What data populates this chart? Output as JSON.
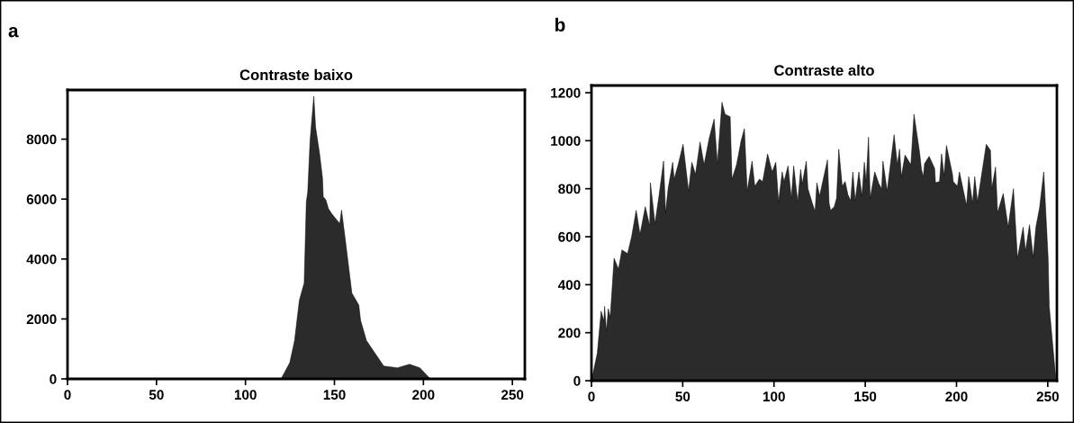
{
  "chart_data": [
    {
      "type": "area",
      "title": "Contraste baixo",
      "annotations": [
        "a"
      ],
      "color": "#2b2b2b",
      "x": [
        0,
        120,
        124.9,
        127.6,
        130.3,
        133,
        133.8,
        134.2,
        135,
        136.3,
        138.4,
        139.4,
        141.7,
        143.3,
        143.7,
        145.2,
        146.6,
        148.5,
        153,
        154,
        156.3,
        159.8,
        162.1,
        163.7,
        164.7,
        168,
        177.7,
        185.4,
        192.2,
        198,
        203.9,
        255
      ],
      "values": [
        0,
        0,
        540,
        1280,
        2630,
        3200,
        5000,
        5900,
        6250,
        7940,
        9430,
        8400,
        7490,
        6700,
        6080,
        5970,
        5680,
        5510,
        5180,
        5630,
        4550,
        2860,
        2630,
        2460,
        1950,
        1280,
        430,
        370,
        490,
        370,
        0,
        0
      ],
      "xlim": [
        0,
        257
      ],
      "ylim": [
        0,
        9640
      ],
      "xticks": [
        0,
        50,
        100,
        150,
        200,
        250
      ],
      "yticks": [
        0,
        2000,
        4000,
        6000,
        8000
      ],
      "grid": false
    },
    {
      "type": "area",
      "title": "Contraste alto",
      "annotations": [
        "b"
      ],
      "color": "#2b2b2b",
      "x": [
        0,
        3.2,
        5.3,
        6.8,
        7.2,
        8.2,
        9.2,
        10.3,
        12.4,
        14.8,
        16.7,
        19.8,
        22,
        24.5,
        26.6,
        29.5,
        31.9,
        32.3,
        34.8,
        37,
        39.5,
        40.6,
        42,
        44.5,
        45.3,
        47.5,
        50.2,
        51.5,
        53.2,
        55,
        57,
        59.5,
        61.7,
        64.5,
        67.2,
        69,
        71.5,
        73.2,
        76,
        77,
        79.5,
        82,
        83.8,
        85.3,
        88,
        89.5,
        92,
        93.8,
        96.5,
        99,
        101,
        102.5,
        104.5,
        105.5,
        107.7,
        109.5,
        110.8,
        113,
        114.6,
        115.5,
        117.7,
        118.6,
        121,
        122.5,
        123.5,
        125,
        129.3,
        130.2,
        131,
        133,
        134.3,
        135.5,
        137.4,
        139,
        140.5,
        142,
        143.2,
        144.5,
        146.5,
        148.2,
        149.5,
        150.5,
        151.8,
        152.7,
        155.2,
        157.5,
        159,
        159.7,
        162,
        165.8,
        167.6,
        168.8,
        169.8,
        171.8,
        175,
        176.7,
        179.8,
        180.8,
        181.8,
        182.5,
        185,
        188,
        188.5,
        190.7,
        191.8,
        193.2,
        194.5,
        197.8,
        198.2,
        200.5,
        201.6,
        205.5,
        206.7,
        208.8,
        210,
        211.5,
        216.3,
        218.6,
        219.3,
        221.4,
        222.5,
        225.6,
        228.3,
        231.2,
        233.4,
        236.5,
        237.8,
        240,
        242,
        243.5,
        245.5,
        247.8,
        250.2,
        250.8,
        254.5
      ],
      "values": [
        0,
        115,
        290,
        250,
        310,
        205,
        300,
        265,
        510,
        465,
        545,
        530,
        600,
        710,
        610,
        725,
        645,
        825,
        655,
        770,
        915,
        700,
        800,
        910,
        840,
        900,
        985,
        900,
        790,
        910,
        860,
        995,
        900,
        1010,
        1090,
        905,
        1160,
        1110,
        1100,
        840,
        900,
        1000,
        1050,
        790,
        915,
        810,
        840,
        830,
        945,
        870,
        910,
        745,
        870,
        830,
        895,
        760,
        895,
        745,
        880,
        820,
        915,
        800,
        740,
        705,
        825,
        770,
        920,
        740,
        710,
        725,
        760,
        965,
        810,
        830,
        775,
        750,
        870,
        750,
        870,
        770,
        910,
        830,
        1015,
        760,
        870,
        820,
        800,
        915,
        790,
        1025,
        900,
        965,
        850,
        940,
        900,
        1110,
        950,
        880,
        850,
        905,
        935,
        885,
        825,
        830,
        945,
        855,
        980,
        860,
        830,
        810,
        870,
        730,
        850,
        740,
        850,
        745,
        985,
        960,
        800,
        890,
        700,
        780,
        640,
        800,
        510,
        640,
        540,
        650,
        515,
        640,
        720,
        870,
        510,
        310,
        0
      ],
      "xlim": [
        0,
        255
      ],
      "ylim": [
        0,
        1230
      ],
      "xticks": [
        0,
        50,
        100,
        150,
        200,
        250
      ],
      "yticks": [
        0,
        200,
        400,
        600,
        800,
        1000,
        1200
      ],
      "grid": false
    }
  ]
}
